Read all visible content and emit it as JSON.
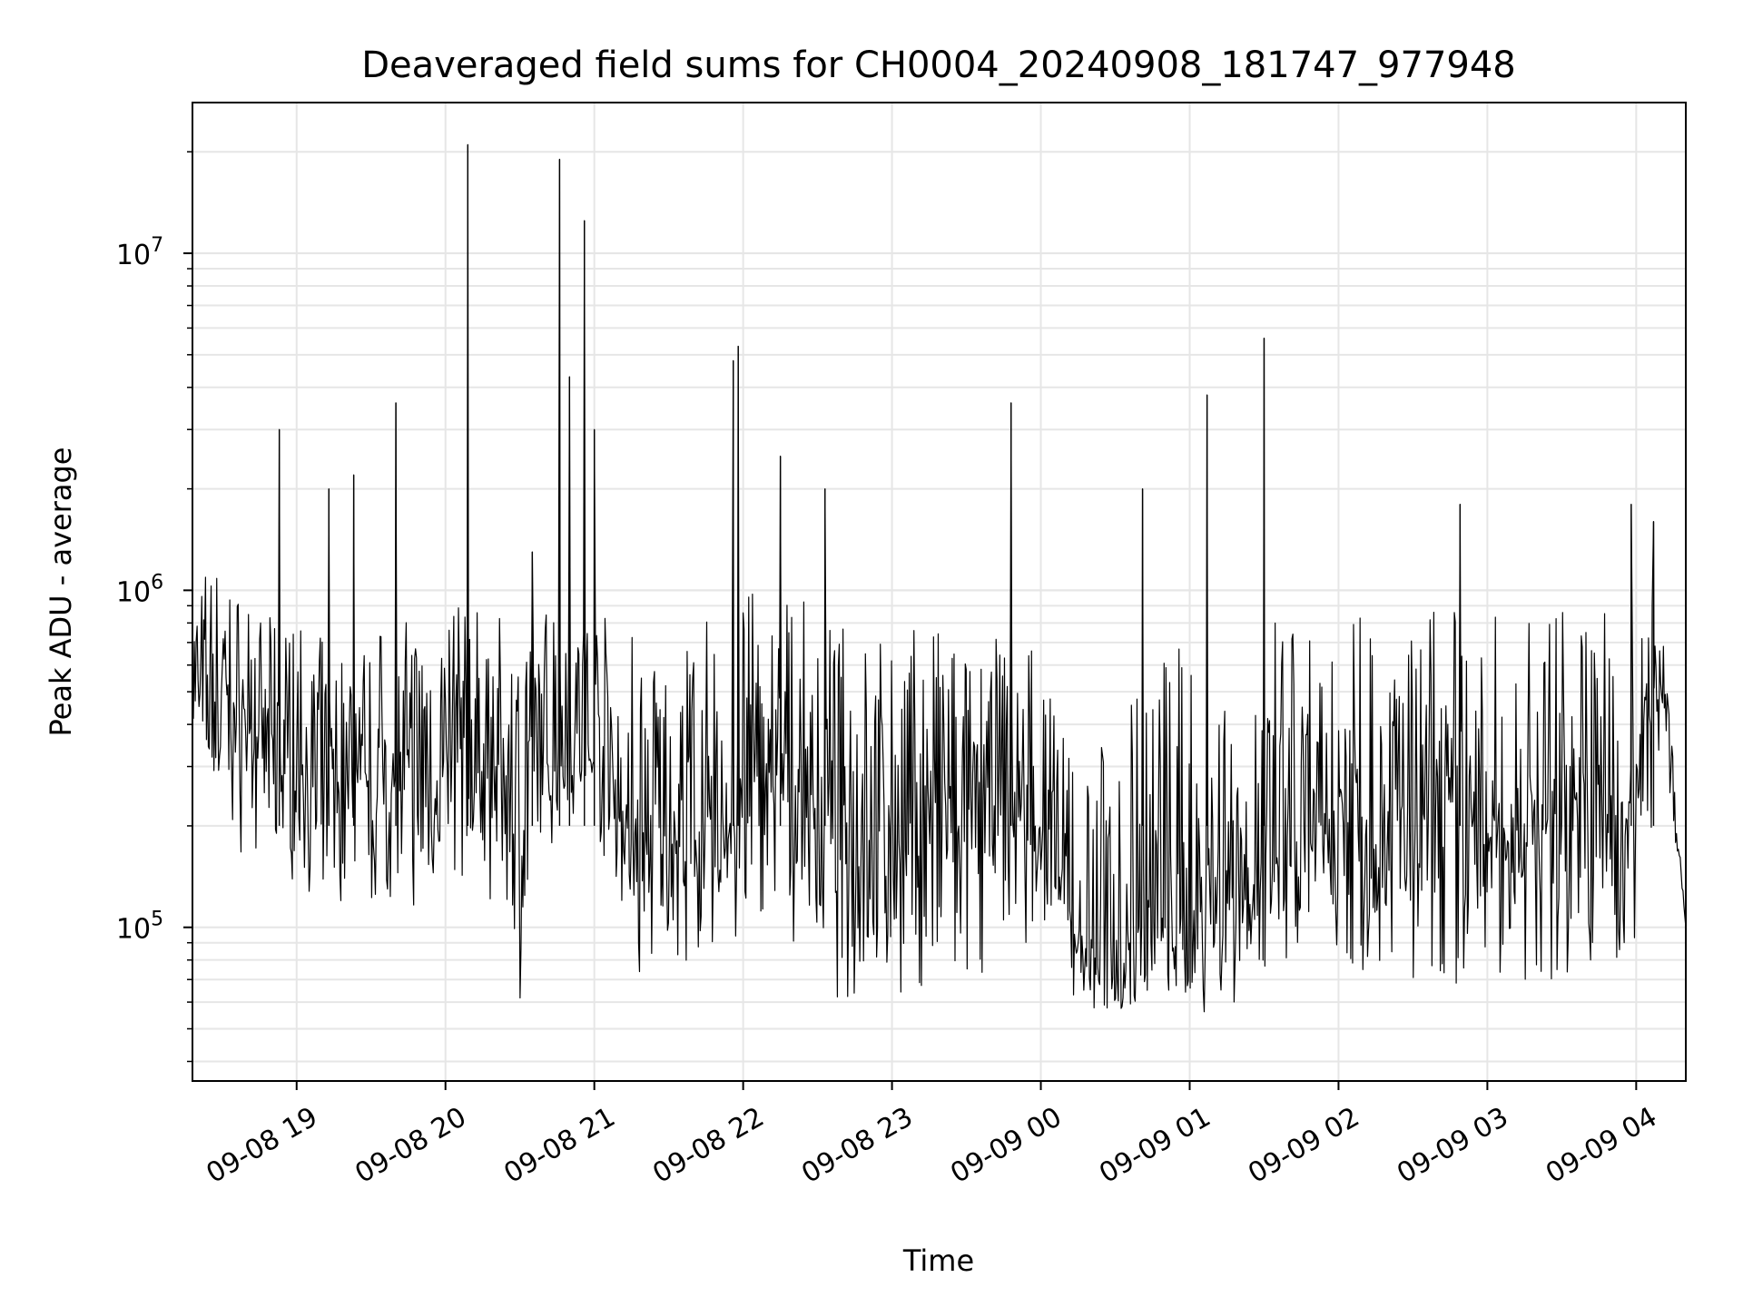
{
  "chart_data": {
    "type": "line",
    "title": "Deaveraged field sums for CH0004_20240908_181747_977948",
    "xlabel": "Time",
    "ylabel": "Peak ADU - average",
    "xscale": "time",
    "yscale": "log",
    "xlim": [
      "2024-09-08 18:18",
      "2024-09-09 04:20"
    ],
    "ylim": [
      35000,
      28000000
    ],
    "grid": true,
    "line_color": "#000000",
    "x_ticks": [
      "09-08 19",
      "09-08 20",
      "09-08 21",
      "09-08 22",
      "09-08 23",
      "09-09 00",
      "09-09 01",
      "09-09 02",
      "09-09 03",
      "09-09 04"
    ],
    "y_ticks": [
      {
        "value": 10000000,
        "base": "10",
        "exp": "7"
      },
      {
        "value": 1000000,
        "base": "10",
        "exp": "6"
      },
      {
        "value": 100000,
        "base": "10",
        "exp": "5"
      }
    ],
    "series": [
      {
        "x": [
          "2024-09-08 18:18",
          "2024-09-08 18:30",
          "2024-09-08 18:45",
          "2024-09-08 19:00",
          "2024-09-08 19:15",
          "2024-09-08 19:30",
          "2024-09-08 19:45",
          "2024-09-08 20:00",
          "2024-09-08 20:15",
          "2024-09-08 20:30",
          "2024-09-08 20:45",
          "2024-09-08 21:00",
          "2024-09-08 21:15",
          "2024-09-08 21:30",
          "2024-09-08 21:45",
          "2024-09-08 22:00",
          "2024-09-08 22:15",
          "2024-09-08 22:30",
          "2024-09-08 22:45",
          "2024-09-08 23:00",
          "2024-09-08 23:15",
          "2024-09-08 23:30",
          "2024-09-08 23:45",
          "2024-09-09 00:00",
          "2024-09-09 00:15",
          "2024-09-09 00:30",
          "2024-09-09 00:45",
          "2024-09-09 01:00",
          "2024-09-09 01:15",
          "2024-09-09 01:30",
          "2024-09-09 01:45",
          "2024-09-09 02:00",
          "2024-09-09 02:15",
          "2024-09-09 02:30",
          "2024-09-09 02:45",
          "2024-09-09 03:00",
          "2024-09-09 03:15",
          "2024-09-09 03:30",
          "2024-09-09 03:45",
          "2024-09-09 04:00",
          "2024-09-09 04:10",
          "2024-09-09 04:20"
        ],
        "y": [
          500000,
          450000,
          380000,
          300000,
          260000,
          270000,
          280000,
          300000,
          320000,
          250000,
          400000,
          380000,
          180000,
          180000,
          190000,
          230000,
          280000,
          240000,
          200000,
          220000,
          200000,
          230000,
          260000,
          220000,
          90000,
          90000,
          100000,
          95000,
          120000,
          140000,
          180000,
          220000,
          210000,
          200000,
          230000,
          180000,
          200000,
          230000,
          240000,
          230000,
          700000,
          100000
        ],
        "lo": [
          380000,
          180000,
          150000,
          130000,
          110000,
          110000,
          100000,
          140000,
          120000,
          60000,
          200000,
          200000,
          60000,
          70000,
          80000,
          80000,
          80000,
          60000,
          55000,
          60000,
          55000,
          55000,
          70000,
          100000,
          55000,
          50000,
          55000,
          55000,
          55000,
          55000,
          60000,
          60000,
          65000,
          65000,
          65000,
          60000,
          60000,
          65000,
          70000,
          70000,
          300000,
          100000
        ],
        "hi": [
          1300000,
          1200000,
          850000,
          800000,
          700000,
          750000,
          850000,
          900000,
          950000,
          700000,
          1100000,
          900000,
          800000,
          800000,
          850000,
          1000000,
          1000000,
          900000,
          750000,
          750000,
          800000,
          700000,
          750000,
          700000,
          300000,
          400000,
          700000,
          750000,
          750000,
          800000,
          850000,
          900000,
          900000,
          900000,
          900000,
          850000,
          850000,
          900000,
          900000,
          900000,
          1100000,
          100000
        ]
      }
    ],
    "spikes": [
      {
        "x": "2024-09-08 18:53",
        "y": 3000000
      },
      {
        "x": "2024-09-08 19:13",
        "y": 2000000
      },
      {
        "x": "2024-09-08 19:23",
        "y": 2200000
      },
      {
        "x": "2024-09-08 19:40",
        "y": 3600000
      },
      {
        "x": "2024-09-08 20:09",
        "y": 21000000
      },
      {
        "x": "2024-09-08 20:35",
        "y": 1300000
      },
      {
        "x": "2024-09-08 20:46",
        "y": 19000000
      },
      {
        "x": "2024-09-08 20:50",
        "y": 4300000
      },
      {
        "x": "2024-09-08 20:56",
        "y": 12500000
      },
      {
        "x": "2024-09-08 21:00",
        "y": 3000000
      },
      {
        "x": "2024-09-08 21:56",
        "y": 4800000
      },
      {
        "x": "2024-09-08 21:58",
        "y": 5300000
      },
      {
        "x": "2024-09-08 22:15",
        "y": 2500000
      },
      {
        "x": "2024-09-08 22:33",
        "y": 2000000
      },
      {
        "x": "2024-09-08 23:48",
        "y": 3600000
      },
      {
        "x": "2024-09-09 00:41",
        "y": 2000000
      },
      {
        "x": "2024-09-09 01:07",
        "y": 3800000
      },
      {
        "x": "2024-09-09 01:30",
        "y": 5600000
      },
      {
        "x": "2024-09-09 02:49",
        "y": 1800000
      },
      {
        "x": "2024-09-09 03:58",
        "y": 1800000
      },
      {
        "x": "2024-09-09 04:07",
        "y": 1600000
      }
    ]
  }
}
